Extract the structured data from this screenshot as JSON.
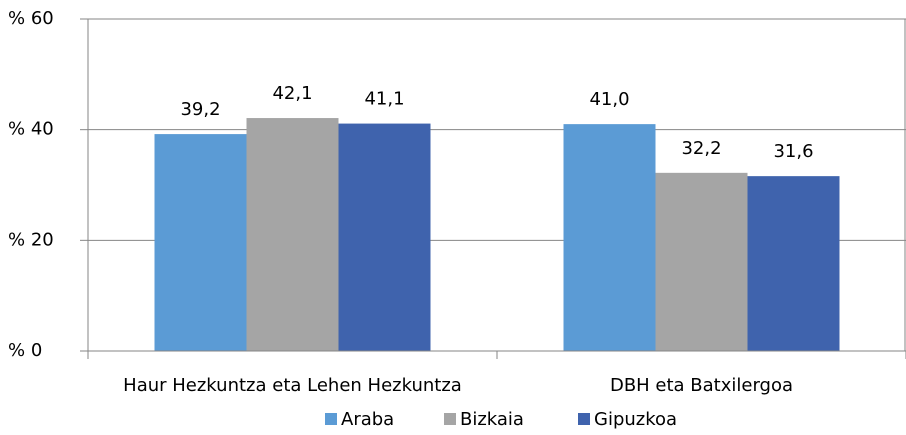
{
  "chart_data": {
    "type": "bar",
    "categories": [
      "Haur Hezkuntza eta Lehen Hezkuntza",
      "DBH eta Batxilergoa"
    ],
    "series": [
      {
        "name": "Araba",
        "color": "#5b9bd5",
        "values": [
          39.2,
          41.0
        ],
        "value_labels": [
          "39,2",
          "41,0"
        ]
      },
      {
        "name": "Bizkaia",
        "color": "#a5a5a5",
        "values": [
          42.1,
          32.2
        ],
        "value_labels": [
          "42,1",
          "32,2"
        ]
      },
      {
        "name": "Gipuzkoa",
        "color": "#3f63ad",
        "values": [
          41.1,
          31.6
        ],
        "value_labels": [
          "41,1",
          "31,6"
        ]
      }
    ],
    "ylim": [
      0,
      60
    ],
    "yticks": [
      {
        "value": 0,
        "label": "% 0"
      },
      {
        "value": 20,
        "label": "% 20"
      },
      {
        "value": 40,
        "label": "% 40"
      },
      {
        "value": 60,
        "label": "% 60"
      }
    ],
    "grid": true,
    "legend": "bottom"
  }
}
